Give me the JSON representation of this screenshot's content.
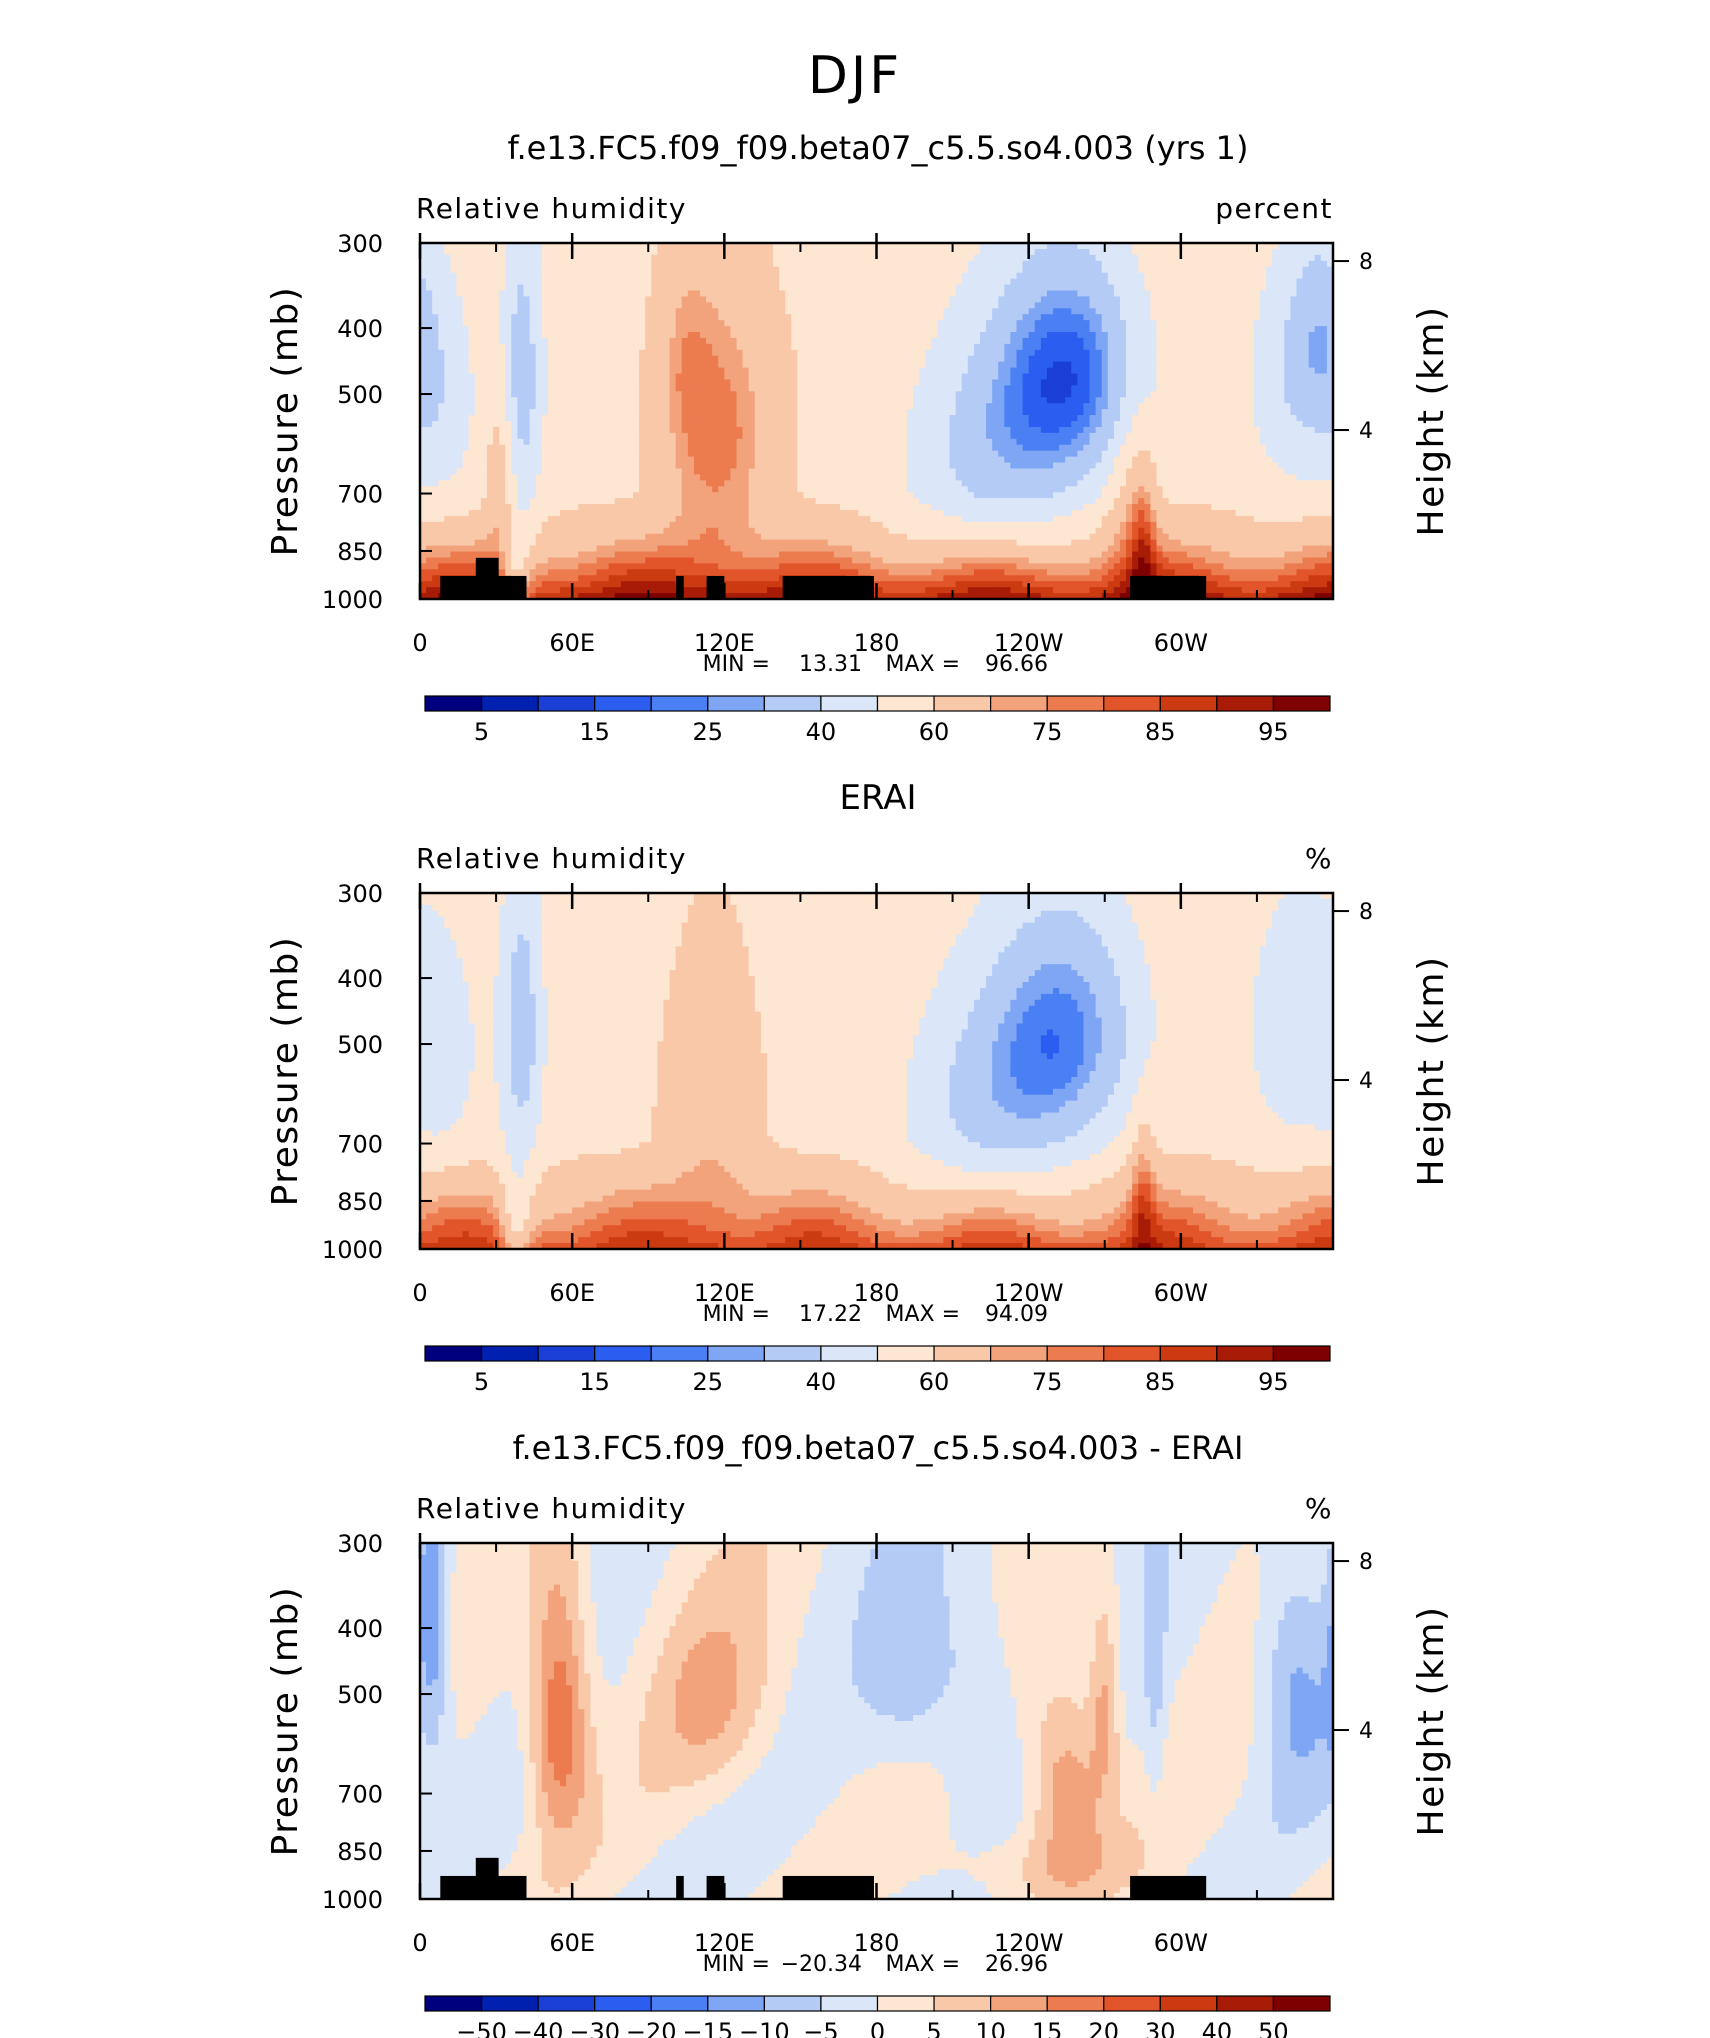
{
  "page": {
    "title": "DJF"
  },
  "colorbars": {
    "full": {
      "colors": [
        "#00007f",
        "#0020b0",
        "#1a3fd6",
        "#2b5ef0",
        "#4a80f4",
        "#7ea6f4",
        "#b4cbf6",
        "#dbe7f8",
        "#fde6d2",
        "#f9c8a8",
        "#f2a37c",
        "#ec7c4f",
        "#e2542a",
        "#cc3a12",
        "#a81c07",
        "#7f0000"
      ],
      "labels": [
        "5",
        "15",
        "25",
        "40",
        "60",
        "75",
        "85",
        "95"
      ],
      "label_after_boundary": [
        1,
        3,
        5,
        7,
        9,
        11,
        13,
        15
      ]
    },
    "diff": {
      "colors": [
        "#00007f",
        "#0020b0",
        "#1a3fd6",
        "#2b5ef0",
        "#4a80f4",
        "#7ea6f4",
        "#b4cbf6",
        "#dbe7f8",
        "#fde6d2",
        "#f9c8a8",
        "#f2a37c",
        "#ec7c4f",
        "#e2542a",
        "#cc3a12",
        "#a81c07",
        "#7f0000"
      ],
      "labels": [
        "−50",
        "−40",
        "−30",
        "−20",
        "−15",
        "−10",
        "−5",
        "0",
        "5",
        "10",
        "15",
        "20",
        "30",
        "40",
        "50"
      ],
      "label_after_boundary": [
        1,
        2,
        3,
        4,
        5,
        6,
        7,
        8,
        9,
        10,
        11,
        12,
        13,
        14,
        15
      ]
    }
  },
  "panels": [
    {
      "title": "f.e13.FC5.f09_f09.beta07_c5.5.so4.003 (yrs 1)",
      "left_label": "Relative humidity",
      "right_label": "percent",
      "stats": {
        "min_label": "MIN =",
        "min_value": "13.31",
        "max_label": "MAX =",
        "max_value": "96.66"
      },
      "show_topography": true,
      "field": "model"
    },
    {
      "title": "ERAI",
      "left_label": "Relative humidity",
      "right_label": "%",
      "stats": {
        "min_label": "MIN =",
        "min_value": "17.22",
        "max_label": "MAX =",
        "max_value": "94.09"
      },
      "show_topography": false,
      "field": "obs"
    },
    {
      "title": "f.e13.FC5.f09_f09.beta07_c5.5.so4.003 - ERAI",
      "left_label": "Relative humidity",
      "right_label": "%",
      "stats": {
        "min_label": "MIN =",
        "min_value": "−20.34",
        "max_label": "MAX =",
        "max_value": "26.96"
      },
      "show_topography": true,
      "field": "diff"
    }
  ],
  "chart_data": [
    {
      "type": "heatmap",
      "title": "f.e13.FC5.f09_f09.beta07_c5.5.so4.003 (yrs 1)",
      "variable": "Relative humidity",
      "units": "percent",
      "xlabel": "",
      "ylabel": "Pressure (mb)",
      "y2label": "Height (km)",
      "x_ticks": [
        "0",
        "60E",
        "120E",
        "180",
        "120W",
        "60W"
      ],
      "y_ticks": [
        "300",
        "400",
        "500",
        "700",
        "850",
        "1000"
      ],
      "y2_ticks": [
        "8",
        "4"
      ],
      "ylim": [
        1000,
        300
      ],
      "contour_levels": [
        5,
        10,
        15,
        20,
        25,
        30,
        40,
        50,
        60,
        70,
        75,
        80,
        85,
        90,
        95
      ],
      "min": 13.31,
      "max": 96.66
    },
    {
      "type": "heatmap",
      "title": "ERAI",
      "variable": "Relative humidity",
      "units": "%",
      "xlabel": "",
      "ylabel": "Pressure (mb)",
      "y2label": "Height (km)",
      "x_ticks": [
        "0",
        "60E",
        "120E",
        "180",
        "120W",
        "60W"
      ],
      "y_ticks": [
        "300",
        "400",
        "500",
        "700",
        "850",
        "1000"
      ],
      "y2_ticks": [
        "8",
        "4"
      ],
      "ylim": [
        1000,
        300
      ],
      "contour_levels": [
        5,
        10,
        15,
        20,
        25,
        30,
        40,
        50,
        60,
        70,
        75,
        80,
        85,
        90,
        95
      ],
      "min": 17.22,
      "max": 94.09
    },
    {
      "type": "heatmap",
      "title": "f.e13.FC5.f09_f09.beta07_c5.5.so4.003 - ERAI",
      "variable": "Relative humidity",
      "units": "%",
      "xlabel": "",
      "ylabel": "Pressure (mb)",
      "y2label": "Height (km)",
      "x_ticks": [
        "0",
        "60E",
        "120E",
        "180",
        "120W",
        "60W"
      ],
      "y_ticks": [
        "300",
        "400",
        "500",
        "700",
        "850",
        "1000"
      ],
      "y2_ticks": [
        "8",
        "4"
      ],
      "ylim": [
        1000,
        300
      ],
      "contour_levels": [
        -50,
        -40,
        -30,
        -20,
        -15,
        -10,
        -5,
        0,
        5,
        10,
        15,
        20,
        30,
        40,
        50
      ],
      "min": -20.34,
      "max": 26.96
    }
  ],
  "axes": {
    "y_label": "Pressure (mb)",
    "y2_label": "Height (km)",
    "y_ticks": [
      {
        "label": "300",
        "p": 300
      },
      {
        "label": "400",
        "p": 400
      },
      {
        "label": "500",
        "p": 500
      },
      {
        "label": "700",
        "p": 700
      },
      {
        "label": "850",
        "p": 850
      },
      {
        "label": "1000",
        "p": 1000
      }
    ],
    "y2_ticks": [
      {
        "label": "8",
        "km": 8
      },
      {
        "label": "4",
        "km": 4
      }
    ],
    "x_ticks": [
      {
        "label": "0",
        "lon": 0
      },
      {
        "label": "60E",
        "lon": 60
      },
      {
        "label": "120E",
        "lon": 120
      },
      {
        "label": "180",
        "lon": 180
      },
      {
        "label": "120W",
        "lon": 240
      },
      {
        "label": "60W",
        "lon": 300
      }
    ]
  }
}
